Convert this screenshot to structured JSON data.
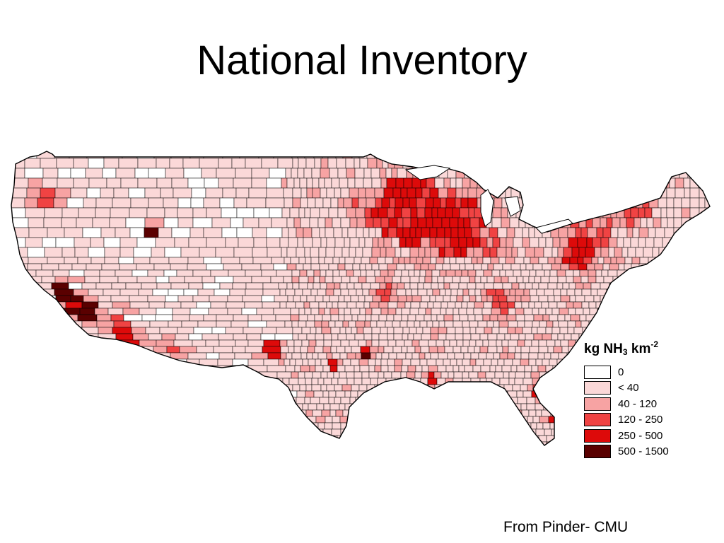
{
  "title": "National Inventory",
  "legend": {
    "title_main": "kg NH",
    "title_sub": "3",
    "title_mid": " km",
    "title_sup": "-2",
    "items": [
      {
        "label": "0",
        "color": "#ffffff"
      },
      {
        "label": "< 40",
        "color": "#fbd8d8"
      },
      {
        "label": "40 - 120",
        "color": "#f7a3a3"
      },
      {
        "label": "120 - 250",
        "color": "#f04343"
      },
      {
        "label": "250 - 500",
        "color": "#dd0a0a"
      },
      {
        "label": "500 - 1500",
        "color": "#5a0000"
      }
    ]
  },
  "credit": "From Pinder- CMU"
}
